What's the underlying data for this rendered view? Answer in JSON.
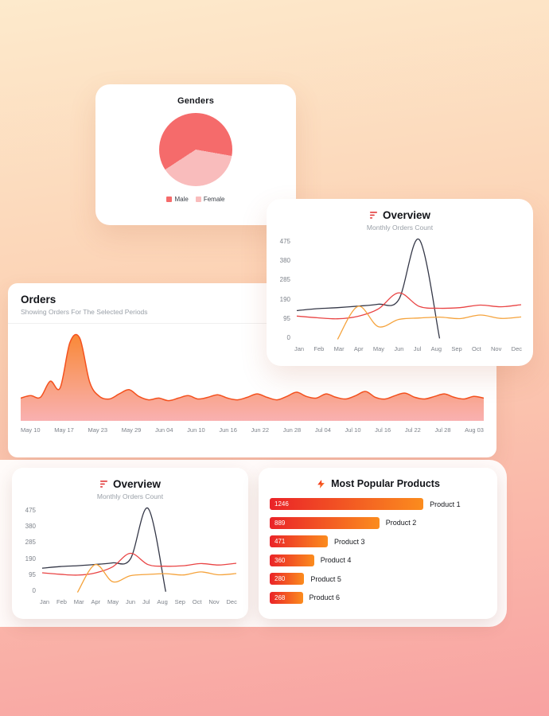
{
  "background": {
    "gradient_top": "#fdeacc",
    "gradient_bottom": "#f8a2a2"
  },
  "genders_card": {
    "title": "Genders",
    "legend": [
      {
        "label": "Male",
        "color": "#f56b6b"
      },
      {
        "label": "Female",
        "color": "#f9bcbc"
      }
    ],
    "chart_data": {
      "type": "pie",
      "start_angle": 100,
      "slices": [
        {
          "label": "Female",
          "value": 38,
          "color": "#f9bcbc"
        },
        {
          "label": "Male",
          "value": 62,
          "color": "#f56b6b"
        }
      ]
    }
  },
  "overview_card": {
    "title": "Overview",
    "subtitle": "Monthly Orders Count",
    "chart_data": {
      "type": "line",
      "categories": [
        "Jan",
        "Feb",
        "Mar",
        "Apr",
        "May",
        "Jun",
        "Jul",
        "Aug",
        "Sep",
        "Oct",
        "Nov",
        "Dec"
      ],
      "yticks": [
        0,
        95,
        190,
        285,
        380,
        475
      ],
      "ylim": [
        0,
        475
      ],
      "series": [
        {
          "name": "dark",
          "color": "#343747",
          "values": [
            138,
            147,
            152,
            159,
            168,
            190,
            475,
            6,
            null,
            null,
            null,
            null
          ]
        },
        {
          "name": "red",
          "color": "#e94444",
          "values": [
            112,
            104,
            99,
            111,
            146,
            222,
            158,
            149,
            152,
            164,
            156,
            166
          ]
        },
        {
          "name": "orange",
          "color": "#f5a33c",
          "values": [
            null,
            null,
            2,
            158,
            62,
            96,
            103,
            107,
            100,
            117,
            101,
            108
          ]
        }
      ]
    }
  },
  "orders_card": {
    "title": "Orders",
    "subtitle": "Showing Orders For The Selected Periods",
    "chart_data": {
      "type": "area",
      "categories": [
        "May 10",
        "May 17",
        "May 23",
        "May 29",
        "Jun 04",
        "Jun 10",
        "Jun 16",
        "Jun 22",
        "Jun 28",
        "Jul 04",
        "Jul 10",
        "Jul 16",
        "Jul 22",
        "Jul 28",
        "Aug 03"
      ],
      "values": [
        26,
        29,
        27,
        46,
        38,
        92,
        97,
        45,
        28,
        25,
        31,
        36,
        28,
        24,
        26,
        23,
        26,
        29,
        25,
        27,
        30,
        26,
        24,
        27,
        31,
        27,
        24,
        28,
        33,
        28,
        26,
        31,
        27,
        25,
        29,
        34,
        27,
        25,
        29,
        32,
        27,
        25,
        28,
        31,
        27,
        25,
        28,
        26
      ],
      "ylim": [
        0,
        100
      ],
      "line_color": "#f4511e",
      "fill_top": "#f9822c",
      "fill_bottom": "#f8a8a8"
    }
  },
  "products_card": {
    "title": "Most Popular Products",
    "chart_data": {
      "type": "bar",
      "max": 1246,
      "max_width_pct": 71,
      "bar_colors": [
        "#ea2328",
        "#fb8c1e"
      ],
      "items": [
        {
          "value": 1246,
          "label": "Product 1"
        },
        {
          "value": 889,
          "label": "Product 2"
        },
        {
          "value": 471,
          "label": "Product 3"
        },
        {
          "value": 360,
          "label": "Product 4"
        },
        {
          "value": 280,
          "label": "Product 5"
        },
        {
          "value": 268,
          "label": "Product 6"
        }
      ]
    }
  }
}
